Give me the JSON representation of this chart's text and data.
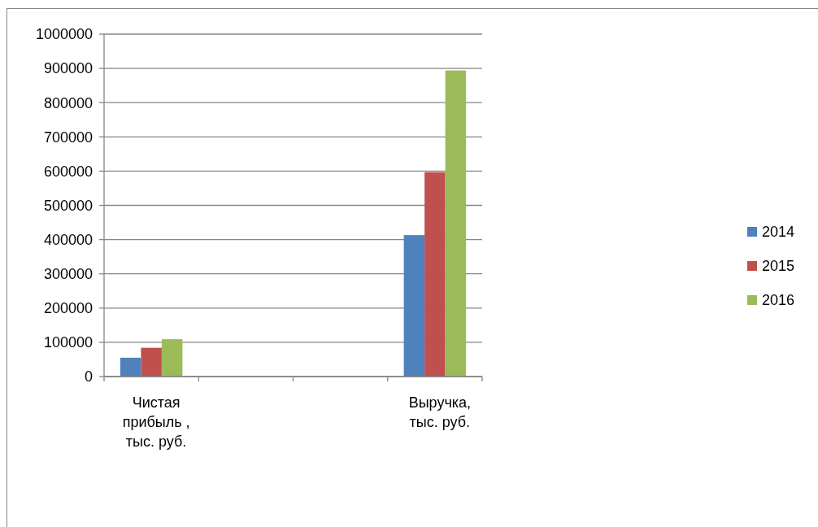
{
  "chart_data": {
    "type": "bar",
    "categories": [
      "Чистая прибыль , тыс. руб.",
      null,
      null,
      "Выручка, тыс. руб."
    ],
    "series": [
      {
        "name": "2014",
        "color": "#4f81bd",
        "values": [
          55000,
          null,
          null,
          413000
        ]
      },
      {
        "name": "2015",
        "color": "#c0504d",
        "values": [
          84000,
          null,
          null,
          597000
        ]
      },
      {
        "name": "2016",
        "color": "#9bbb59",
        "values": [
          109000,
          null,
          null,
          894000
        ]
      }
    ],
    "ylim": [
      0,
      1000000
    ],
    "yticks": [
      0,
      100000,
      200000,
      300000,
      400000,
      500000,
      600000,
      700000,
      800000,
      900000,
      1000000
    ],
    "grid": "y",
    "legend": "right"
  }
}
